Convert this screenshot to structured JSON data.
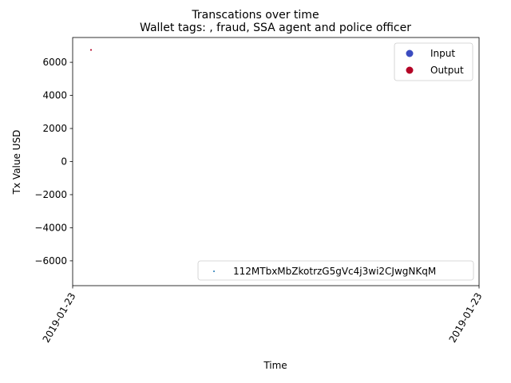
{
  "chart_data": {
    "type": "scatter",
    "suptitle": "Transcations over time",
    "title": "Wallet tags: , fraud, SSA agent and police officer",
    "xlabel": "Time",
    "ylabel": "Tx Value USD",
    "ylim": [
      -7500,
      7500
    ],
    "y_ticks": [
      -6000,
      -4000,
      -2000,
      0,
      2000,
      4000,
      6000
    ],
    "y_tick_labels": [
      "−6000",
      "−4000",
      "−2000",
      "0",
      "2000",
      "4000",
      "6000"
    ],
    "x_tick_labels": [
      "2019-01-23",
      "2019-01-23"
    ],
    "x_tick_rotation_deg": 60,
    "grid": false,
    "series": [
      {
        "name": "Input",
        "color": "#3b4cc0",
        "points": []
      },
      {
        "name": "Output",
        "color": "#b40426",
        "points": [
          {
            "x": "2019-01-23",
            "y": 6750
          }
        ]
      }
    ],
    "legends": [
      {
        "placement": "top-right",
        "entries": [
          {
            "label": "Input",
            "color": "#3b4cc0",
            "marker": "circle"
          },
          {
            "label": "Output",
            "color": "#b40426",
            "marker": "circle"
          }
        ]
      },
      {
        "placement": "lower-right",
        "entries": [
          {
            "label": "112MTbxMbZkotrzG5gVc4j3wi2CJwgNKqM",
            "color": "#1f77b4",
            "marker": "point"
          }
        ]
      }
    ]
  }
}
